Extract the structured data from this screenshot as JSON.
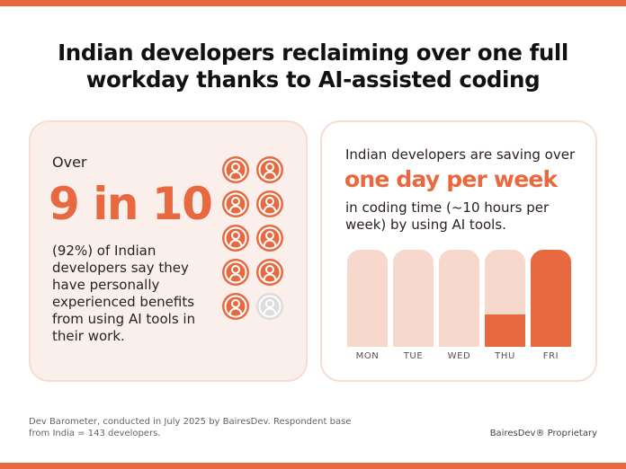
{
  "headline": "Indian developers reclaiming over one full workday thanks to AI-assisted coding",
  "left_card": {
    "over_label": "Over",
    "big_stat": "9 in 10",
    "description": "(92%) of Indian developers say they have personally experienced benefits from using AI tools in their work.",
    "icons_total": 10,
    "icons_highlighted": 9,
    "icon_name": "person-icon"
  },
  "right_card": {
    "intro": "Indian developers are saving over",
    "highlight": "one day per week",
    "description": "in coding time (~10 hours per week) by using AI tools."
  },
  "week": {
    "days": [
      {
        "label": "MON",
        "saved_fraction": 0
      },
      {
        "label": "TUE",
        "saved_fraction": 0
      },
      {
        "label": "WED",
        "saved_fraction": 0
      },
      {
        "label": "THU",
        "saved_fraction": 0.33
      },
      {
        "label": "FRI",
        "saved_fraction": 1
      }
    ]
  },
  "footer": {
    "source": "Dev Barometer, conducted in July 2025 by BairesDev. Respondent base from India = 143 developers.",
    "proprietary": "BairesDev® Proprietary"
  },
  "colors": {
    "accent": "#e8683f",
    "bar_light": "#f6d8cd",
    "card_bg": "#faefea",
    "icon_inactive": "#dcdcdc"
  }
}
